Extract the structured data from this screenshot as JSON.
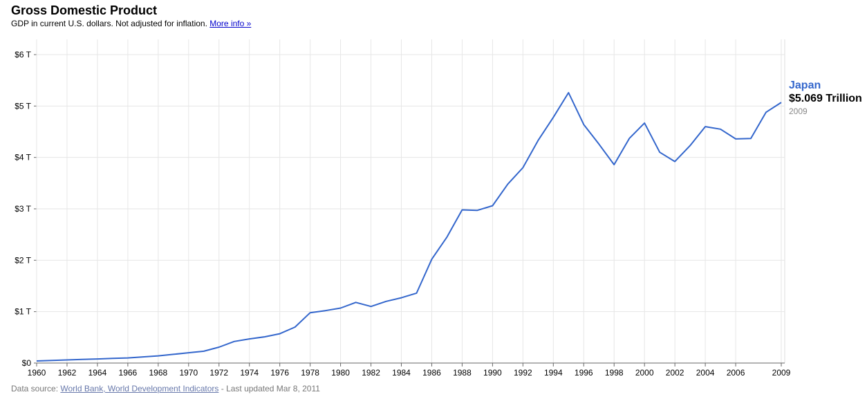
{
  "header": {
    "title": "Gross Domestic Product",
    "subtitle": "GDP in current U.S. dollars. Not adjusted for inflation.",
    "more_info_link": "More info »"
  },
  "focus": {
    "country": "Japan",
    "value": "$5.069 Trillion",
    "year": "2009"
  },
  "footer": {
    "prefix": "Data source:",
    "source_link": "World Bank, World Development Indicators",
    "suffix": "- Last updated Mar 8, 2011"
  },
  "colors": {
    "series": "#3366cc",
    "grid": "#e6e6e6",
    "axis": "#666666"
  },
  "chart_data": {
    "type": "line",
    "title": "Gross Domestic Product",
    "subtitle": "GDP in current U.S. dollars. Not adjusted for inflation.",
    "xlabel": "",
    "ylabel": "",
    "xlim": [
      1960,
      2009
    ],
    "ylim": [
      0,
      6
    ],
    "y_unit": "trillion US$",
    "grid": true,
    "x_ticks": [
      "1960",
      "1962",
      "1964",
      "1966",
      "1968",
      "1970",
      "1972",
      "1974",
      "1976",
      "1978",
      "1980",
      "1982",
      "1984",
      "1986",
      "1988",
      "1990",
      "1992",
      "1994",
      "1996",
      "1998",
      "2000",
      "2002",
      "2004",
      "2006",
      "2009"
    ],
    "y_ticks": [
      "$0",
      "$1 T",
      "$2 T",
      "$3 T",
      "$4 T",
      "$5 T",
      "$6 T"
    ],
    "series": [
      {
        "name": "Japan",
        "x": [
          1960,
          1961,
          1962,
          1963,
          1964,
          1965,
          1966,
          1967,
          1968,
          1969,
          1970,
          1971,
          1972,
          1973,
          1974,
          1975,
          1976,
          1977,
          1978,
          1979,
          1980,
          1981,
          1982,
          1983,
          1984,
          1985,
          1986,
          1987,
          1988,
          1989,
          1990,
          1991,
          1992,
          1993,
          1994,
          1995,
          1996,
          1997,
          1998,
          1999,
          2000,
          2001,
          2002,
          2003,
          2004,
          2005,
          2006,
          2007,
          2008,
          2009
        ],
        "values": [
          0.04,
          0.05,
          0.06,
          0.07,
          0.08,
          0.09,
          0.1,
          0.12,
          0.14,
          0.17,
          0.2,
          0.23,
          0.31,
          0.42,
          0.47,
          0.51,
          0.57,
          0.7,
          0.98,
          1.02,
          1.07,
          1.18,
          1.1,
          1.2,
          1.27,
          1.36,
          2.02,
          2.45,
          2.98,
          2.97,
          3.06,
          3.48,
          3.8,
          4.33,
          4.78,
          5.26,
          4.64,
          4.26,
          3.86,
          4.37,
          4.67,
          4.1,
          3.92,
          4.23,
          4.6,
          4.55,
          4.36,
          4.37,
          4.88,
          5.07
        ]
      }
    ],
    "focus_point": {
      "x": 2009,
      "y": 5.069
    }
  }
}
